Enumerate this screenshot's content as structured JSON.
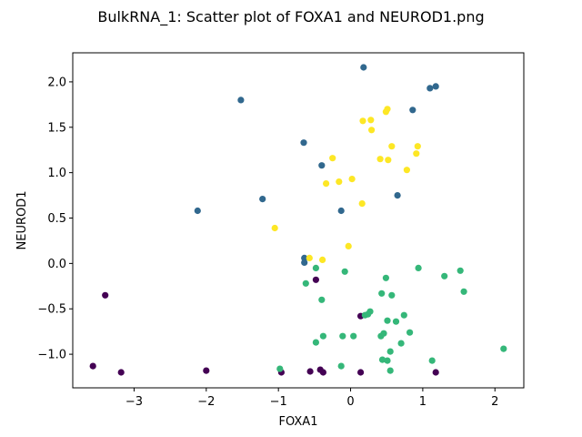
{
  "chart_data": {
    "type": "scatter",
    "title": "BulkRNA_1: Scatter plot of FOXA1 and NEUROD1.png",
    "xlabel": "FOXA1",
    "ylabel": "NEUROD1",
    "xlim": [
      -3.85,
      2.4
    ],
    "ylim": [
      -1.37,
      2.32
    ],
    "xticks": [
      -3,
      -2,
      -1,
      0,
      1,
      2
    ],
    "xtick_labels": [
      "−3",
      "−2",
      "−1",
      "0",
      "1",
      "2"
    ],
    "yticks": [
      -1.0,
      -0.5,
      0.0,
      0.5,
      1.0,
      1.5,
      2.0
    ],
    "ytick_labels": [
      "−1.0",
      "−0.5",
      "0.0",
      "0.5",
      "1.0",
      "1.5",
      "2.0"
    ],
    "grid": false,
    "legend": null,
    "groups": [
      {
        "color": "#440154",
        "points": [
          [
            -3.4,
            -0.35
          ],
          [
            -3.57,
            -1.13
          ],
          [
            -3.18,
            -1.2
          ],
          [
            -2.0,
            -1.18
          ],
          [
            -0.96,
            -1.2
          ],
          [
            -0.56,
            -1.19
          ],
          [
            -0.42,
            -1.17
          ],
          [
            -0.38,
            -1.2
          ],
          [
            -0.48,
            -0.18
          ],
          [
            0.14,
            -0.58
          ],
          [
            0.14,
            -1.2
          ],
          [
            1.18,
            -1.2
          ]
        ]
      },
      {
        "color": "#31688e",
        "points": [
          [
            0.18,
            2.16
          ],
          [
            1.1,
            1.93
          ],
          [
            1.18,
            1.95
          ],
          [
            -1.52,
            1.8
          ],
          [
            0.86,
            1.69
          ],
          [
            -0.65,
            1.33
          ],
          [
            -0.4,
            1.08
          ],
          [
            -1.22,
            0.71
          ],
          [
            0.65,
            0.75
          ],
          [
            -2.12,
            0.58
          ],
          [
            -0.13,
            0.58
          ],
          [
            -0.64,
            0.06
          ],
          [
            -0.64,
            0.01
          ]
        ]
      },
      {
        "color": "#35b779",
        "points": [
          [
            -0.48,
            -0.05
          ],
          [
            -0.08,
            -0.09
          ],
          [
            -0.62,
            -0.22
          ],
          [
            -0.4,
            -0.4
          ],
          [
            0.49,
            -0.16
          ],
          [
            0.94,
            -0.05
          ],
          [
            1.3,
            -0.14
          ],
          [
            1.52,
            -0.08
          ],
          [
            1.57,
            -0.31
          ],
          [
            0.43,
            -0.33
          ],
          [
            0.57,
            -0.35
          ],
          [
            0.27,
            -0.53
          ],
          [
            0.24,
            -0.56
          ],
          [
            0.2,
            -0.57
          ],
          [
            0.51,
            -0.63
          ],
          [
            0.63,
            -0.64
          ],
          [
            0.74,
            -0.57
          ],
          [
            0.82,
            -0.76
          ],
          [
            0.42,
            -0.8
          ],
          [
            0.46,
            -0.77
          ],
          [
            0.04,
            -0.8
          ],
          [
            -0.11,
            -0.8
          ],
          [
            -0.38,
            -0.8
          ],
          [
            -0.48,
            -0.87
          ],
          [
            0.7,
            -0.88
          ],
          [
            0.55,
            -0.97
          ],
          [
            2.12,
            -0.94
          ],
          [
            0.44,
            -1.06
          ],
          [
            0.51,
            -1.07
          ],
          [
            1.13,
            -1.07
          ],
          [
            -0.13,
            -1.13
          ],
          [
            0.55,
            -1.18
          ],
          [
            -0.98,
            -1.16
          ]
        ]
      },
      {
        "color": "#fde725",
        "points": [
          [
            0.17,
            1.57
          ],
          [
            0.28,
            1.58
          ],
          [
            0.49,
            1.67
          ],
          [
            0.51,
            1.7
          ],
          [
            0.29,
            1.47
          ],
          [
            0.57,
            1.29
          ],
          [
            0.93,
            1.29
          ],
          [
            0.91,
            1.21
          ],
          [
            -0.25,
            1.16
          ],
          [
            0.41,
            1.15
          ],
          [
            0.52,
            1.14
          ],
          [
            0.78,
            1.03
          ],
          [
            0.02,
            0.93
          ],
          [
            -0.16,
            0.9
          ],
          [
            -0.34,
            0.88
          ],
          [
            0.16,
            0.66
          ],
          [
            -1.05,
            0.39
          ],
          [
            -0.57,
            0.06
          ],
          [
            -0.39,
            0.04
          ],
          [
            -0.03,
            0.19
          ]
        ]
      }
    ]
  }
}
